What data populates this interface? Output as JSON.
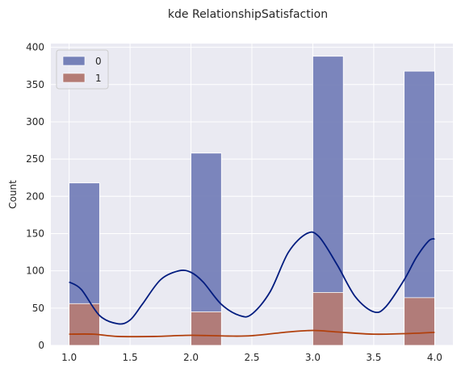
{
  "chart_data": {
    "type": "bar",
    "title": "kde RelationshipSatisfaction",
    "xlabel": "",
    "ylabel": "Count",
    "xlim": [
      0.85,
      4.15
    ],
    "ylim": [
      0,
      405
    ],
    "x_ticks": [
      "1.0",
      "1.5",
      "2.0",
      "2.5",
      "3.0",
      "3.5",
      "4.0"
    ],
    "x_tick_values": [
      1.0,
      1.5,
      2.0,
      2.5,
      3.0,
      3.5,
      4.0
    ],
    "y_ticks": [
      "0",
      "50",
      "100",
      "150",
      "200",
      "250",
      "300",
      "350",
      "400"
    ],
    "y_tick_values": [
      0,
      50,
      100,
      150,
      200,
      250,
      300,
      350,
      400
    ],
    "grid": true,
    "legend_placement": "top-left",
    "bins": [
      [
        1.0,
        1.25
      ],
      [
        2.0,
        2.25
      ],
      [
        3.0,
        3.25
      ],
      [
        3.75,
        4.0
      ]
    ],
    "series": [
      {
        "name": "0",
        "values": [
          218,
          258,
          388,
          368
        ],
        "bar_color": "#7580b8",
        "kde_color": "#001c7f",
        "kde": [
          [
            1.0,
            85
          ],
          [
            1.1,
            75
          ],
          [
            1.25,
            40
          ],
          [
            1.4,
            29
          ],
          [
            1.5,
            34
          ],
          [
            1.6,
            55
          ],
          [
            1.75,
            88
          ],
          [
            1.9,
            100
          ],
          [
            2.0,
            98
          ],
          [
            2.1,
            85
          ],
          [
            2.25,
            55
          ],
          [
            2.4,
            40
          ],
          [
            2.5,
            42
          ],
          [
            2.65,
            72
          ],
          [
            2.8,
            125
          ],
          [
            2.95,
            150
          ],
          [
            3.05,
            146
          ],
          [
            3.2,
            108
          ],
          [
            3.35,
            65
          ],
          [
            3.5,
            45
          ],
          [
            3.6,
            52
          ],
          [
            3.75,
            88
          ],
          [
            3.85,
            118
          ],
          [
            3.95,
            140
          ],
          [
            4.0,
            143
          ]
        ]
      },
      {
        "name": "1",
        "values": [
          56,
          45,
          71,
          64
        ],
        "bar_color": "#b47b75",
        "kde_color": "#b1400d",
        "kde": [
          [
            1.0,
            15
          ],
          [
            1.2,
            15
          ],
          [
            1.4,
            12
          ],
          [
            1.7,
            12
          ],
          [
            2.0,
            13.5
          ],
          [
            2.3,
            12.5
          ],
          [
            2.5,
            13
          ],
          [
            2.8,
            18
          ],
          [
            3.0,
            20
          ],
          [
            3.2,
            18
          ],
          [
            3.5,
            15
          ],
          [
            3.8,
            16
          ],
          [
            4.0,
            17.5
          ]
        ]
      }
    ]
  }
}
